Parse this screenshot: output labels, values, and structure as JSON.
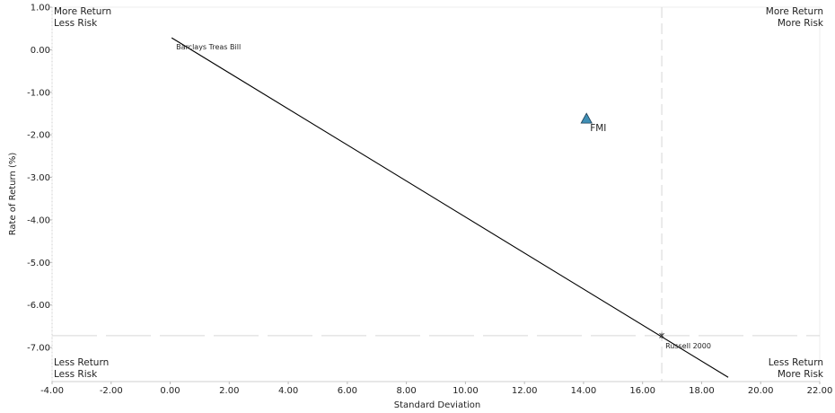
{
  "chart_data": {
    "type": "scatter",
    "title": "",
    "xlabel": "Standard Deviation",
    "ylabel": "Rate of Return (%)",
    "xlim": [
      -4,
      22
    ],
    "ylim": [
      -7.8,
      1.0
    ],
    "x_ticks": [
      "-4.00",
      "-2.00",
      "0.00",
      "2.00",
      "4.00",
      "6.00",
      "8.00",
      "10.00",
      "12.00",
      "14.00",
      "16.00",
      "18.00",
      "20.00",
      "22.00"
    ],
    "y_ticks": [
      "1.00",
      "0.00",
      "-1.00",
      "-2.00",
      "-3.00",
      "-4.00",
      "-5.00",
      "-6.00",
      "-7.00"
    ],
    "x_tick_values": [
      -4,
      -2,
      0,
      2,
      4,
      6,
      8,
      10,
      12,
      14,
      16,
      18,
      20,
      22
    ],
    "y_tick_values": [
      1,
      0,
      -1,
      -2,
      -3,
      -4,
      -5,
      -6,
      -7
    ],
    "points": [
      {
        "label": "Barclays Treas Bill",
        "x": 0.05,
        "y": 0.28,
        "marker": "none"
      },
      {
        "label": "FMI",
        "x": 14.1,
        "y": -1.62,
        "marker": "triangle",
        "color": "#3f8fb5"
      },
      {
        "label": "Russell 2000",
        "x": 16.65,
        "y": -6.72,
        "marker": "star"
      }
    ],
    "capital_market_line": {
      "from": [
        0.05,
        0.28
      ],
      "to": [
        18.9,
        -7.7
      ]
    },
    "reference_lines": {
      "x": 16.65,
      "y": -6.72,
      "style": "dashed"
    },
    "quadrant_labels": {
      "top_left": [
        "More Return",
        "Less Risk"
      ],
      "top_right": [
        "More Return",
        "More Risk"
      ],
      "bottom_left": [
        "Less Return",
        "Less Risk"
      ],
      "bottom_right": [
        "Less Return",
        "More Risk"
      ]
    },
    "grid": false,
    "legend": "none"
  }
}
